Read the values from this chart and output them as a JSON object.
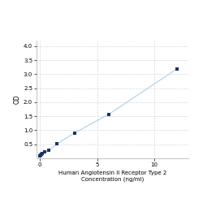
{
  "x": [
    0,
    0.047,
    0.094,
    0.188,
    0.375,
    0.75,
    1.5,
    3,
    6,
    12
  ],
  "y": [
    0.1,
    0.13,
    0.15,
    0.18,
    0.22,
    0.28,
    0.52,
    0.9,
    1.57,
    3.2
  ],
  "line_color": "#b0cfe0",
  "marker_color": "#1a3566",
  "marker_size": 3.5,
  "marker_style": "s",
  "xlabel_line1": "Human Angiotensin II Receptor Type 2",
  "xlabel_line2": "Concentration (ng/ml)",
  "ylabel": "OD",
  "xlim": [
    -0.3,
    13
  ],
  "ylim": [
    0,
    4.2
  ],
  "yticks": [
    0.5,
    1,
    1.5,
    2,
    2.5,
    3,
    3.5,
    4
  ],
  "xticks": [
    0,
    5,
    10
  ],
  "xtick_labels": [
    "0",
    "5",
    "10"
  ],
  "grid_color": "#d0d8e0",
  "background_color": "#ffffff",
  "xlabel_fontsize": 5.0,
  "ylabel_fontsize": 5.5,
  "tick_fontsize": 5.0
}
